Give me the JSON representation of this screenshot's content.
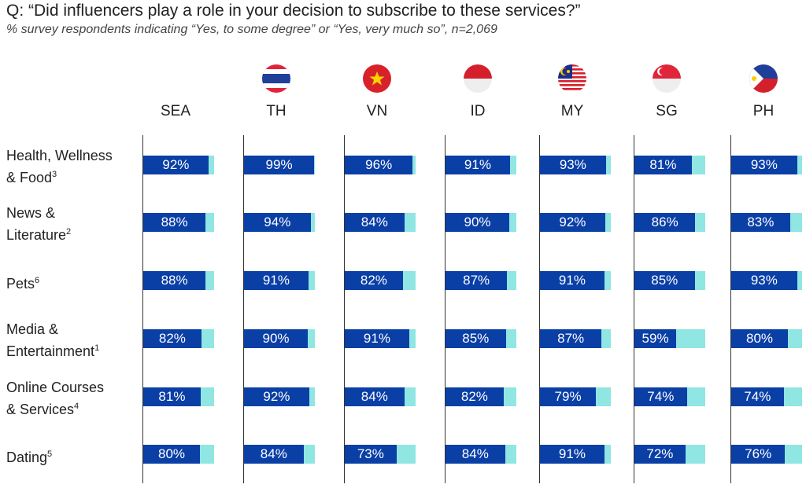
{
  "header": {
    "title": "Q: “Did influencers play a role in your decision to subscribe to these services?”",
    "subtitle": "% survey respondents indicating “Yes, to some degree” or “Yes, very much so”, n=2,069"
  },
  "chart_data": {
    "type": "bar",
    "orientation": "horizontal",
    "xlim": [
      0,
      100
    ],
    "colors": {
      "value": "#0a3fa6",
      "remainder": "#8fe6e2"
    },
    "columns": [
      {
        "code": "SEA",
        "flag": null
      },
      {
        "code": "TH",
        "flag": "thailand-flag"
      },
      {
        "code": "VN",
        "flag": "vietnam-flag"
      },
      {
        "code": "ID",
        "flag": "indonesia-flag"
      },
      {
        "code": "MY",
        "flag": "malaysia-flag"
      },
      {
        "code": "SG",
        "flag": "singapore-flag"
      },
      {
        "code": "PH",
        "flag": "philippines-flag"
      }
    ],
    "categories": [
      {
        "label_lines": [
          "Health, Wellness",
          "& Food"
        ],
        "footnote": "3"
      },
      {
        "label_lines": [
          "News &",
          "Literature"
        ],
        "footnote": "2"
      },
      {
        "label_lines": [
          "Pets"
        ],
        "footnote": "6"
      },
      {
        "label_lines": [
          "Media &",
          "Entertainment"
        ],
        "footnote": "1"
      },
      {
        "label_lines": [
          "Online Courses",
          "& Services"
        ],
        "footnote": "4"
      },
      {
        "label_lines": [
          "Dating"
        ],
        "footnote": "5"
      }
    ],
    "values": [
      [
        92,
        99,
        96,
        91,
        93,
        81,
        93
      ],
      [
        88,
        94,
        84,
        90,
        92,
        86,
        83
      ],
      [
        88,
        91,
        82,
        87,
        91,
        85,
        93
      ],
      [
        82,
        90,
        91,
        85,
        87,
        59,
        80
      ],
      [
        81,
        92,
        84,
        82,
        79,
        74,
        74
      ],
      [
        80,
        84,
        73,
        84,
        91,
        72,
        76
      ]
    ],
    "value_format": "{v}%"
  }
}
